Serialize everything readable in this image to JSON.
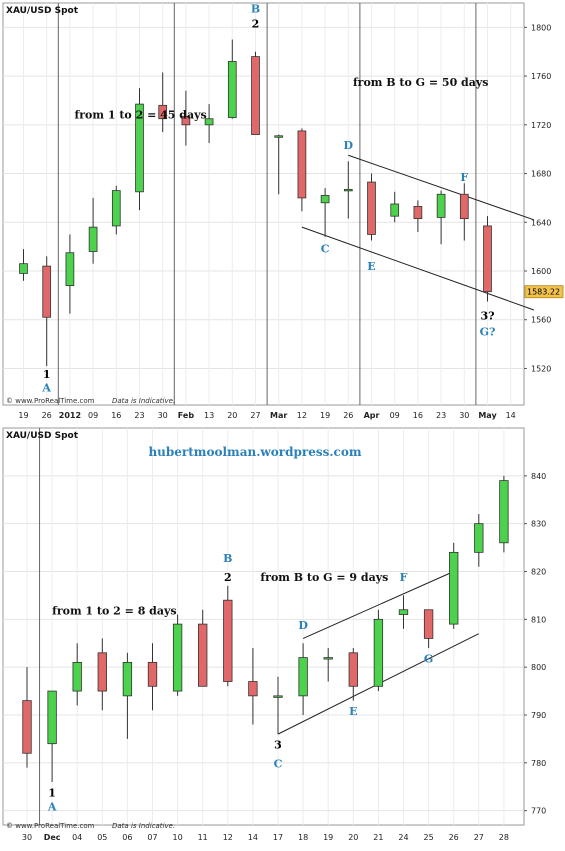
{
  "chart_data": [
    {
      "type": "candlestick",
      "title": "XAU/USD Spot",
      "watermark": "© www.ProRealTime.com",
      "disclaimer": "Data is Indicative.",
      "ylim": [
        1490,
        1820
      ],
      "y_ticks": [
        1520,
        1560,
        1600,
        1640,
        1680,
        1720,
        1760,
        1800
      ],
      "y_tick_labels": [
        "1520",
        "1560",
        "1600",
        "1640",
        "1680",
        "1720",
        "1760",
        "1800"
      ],
      "x_tick_labels": [
        "19",
        "26",
        "2012",
        "09",
        "16",
        "23",
        "30",
        "Feb",
        "13",
        "20",
        "27",
        "Mar",
        "12",
        "19",
        "26",
        "Apr",
        "09",
        "16",
        "23",
        "30",
        "May",
        "14"
      ],
      "current_price_label": "1583.22",
      "candles": [
        {
          "x": 1,
          "o": 1598,
          "h": 1618,
          "l": 1592,
          "c": 1606
        },
        {
          "x": 2,
          "o": 1604,
          "h": 1612,
          "l": 1522,
          "c": 1562
        },
        {
          "x": 3,
          "o": 1588,
          "h": 1630,
          "l": 1565,
          "c": 1615
        },
        {
          "x": 4,
          "o": 1616,
          "h": 1660,
          "l": 1606,
          "c": 1636
        },
        {
          "x": 5,
          "o": 1637,
          "h": 1670,
          "l": 1630,
          "c": 1666
        },
        {
          "x": 6,
          "o": 1665,
          "h": 1750,
          "l": 1650,
          "c": 1737
        },
        {
          "x": 7,
          "o": 1736,
          "h": 1763,
          "l": 1714,
          "c": 1725
        },
        {
          "x": 8,
          "o": 1727,
          "h": 1748,
          "l": 1703,
          "c": 1720
        },
        {
          "x": 9,
          "o": 1720,
          "h": 1737,
          "l": 1705,
          "c": 1725
        },
        {
          "x": 10,
          "o": 1726,
          "h": 1790,
          "l": 1725,
          "c": 1772
        },
        {
          "x": 11,
          "o": 1776,
          "h": 1780,
          "l": 1712,
          "c": 1712
        },
        {
          "x": 12,
          "o": 1711,
          "h": 1712,
          "l": 1663,
          "c": 1711
        },
        {
          "x": 13,
          "o": 1715,
          "h": 1717,
          "l": 1649,
          "c": 1660
        },
        {
          "x": 14,
          "o": 1656,
          "h": 1668,
          "l": 1628,
          "c": 1662
        },
        {
          "x": 15,
          "o": 1667,
          "h": 1690,
          "l": 1643,
          "c": 1667
        },
        {
          "x": 16,
          "o": 1673,
          "h": 1680,
          "l": 1625,
          "c": 1630
        },
        {
          "x": 17,
          "o": 1645,
          "h": 1665,
          "l": 1640,
          "c": 1655
        },
        {
          "x": 18,
          "o": 1653,
          "h": 1658,
          "l": 1632,
          "c": 1643
        },
        {
          "x": 19,
          "o": 1644,
          "h": 1666,
          "l": 1622,
          "c": 1663
        },
        {
          "x": 20,
          "o": 1663,
          "h": 1672,
          "l": 1625,
          "c": 1643
        },
        {
          "x": 21,
          "o": 1637,
          "h": 1645,
          "l": 1575,
          "c": 1583
        }
      ],
      "channel_lines": [
        {
          "x1": 13,
          "y1": 1636,
          "x2": 23,
          "y2": 1568
        },
        {
          "x1": 15,
          "y1": 1695,
          "x2": 23,
          "y2": 1642
        }
      ],
      "vertical_dividers": [
        2.5,
        7.5,
        11.5,
        15.5,
        20.5
      ],
      "wave_labels": [
        {
          "x": 2,
          "y": 1512,
          "text": "1",
          "color": "#000000"
        },
        {
          "x": 2,
          "y": 1501,
          "text": "A",
          "color": "#2a80b9"
        },
        {
          "x": 11,
          "y": 1812,
          "text": "B",
          "color": "#2a80b9"
        },
        {
          "x": 11,
          "y": 1800,
          "text": "2",
          "color": "#000000"
        },
        {
          "x": 14,
          "y": 1615,
          "text": "C",
          "color": "#2a80b9"
        },
        {
          "x": 15,
          "y": 1700,
          "text": "D",
          "color": "#2a80b9"
        },
        {
          "x": 16,
          "y": 1601,
          "text": "E",
          "color": "#2a80b9"
        },
        {
          "x": 20,
          "y": 1674,
          "text": "F",
          "color": "#2a80b9"
        },
        {
          "x": 21,
          "y": 1560,
          "text": "3?",
          "color": "#000000"
        },
        {
          "x": 21,
          "y": 1547,
          "text": "G?",
          "color": "#2a80b9"
        }
      ],
      "annotations": [
        {
          "x": 3.2,
          "y": 1725,
          "text": "from 1 to 2 = 45 days"
        },
        {
          "x": 15.2,
          "y": 1752,
          "text": "from B to G = 50 days"
        }
      ]
    },
    {
      "type": "candlestick",
      "title": "XAU/USD Spot",
      "watermark": "© www.ProRealTime.com",
      "disclaimer": "Data is Indicative.",
      "site_label": "hubertmoolman.wordpress.com",
      "ylim": [
        767,
        850
      ],
      "y_ticks": [
        770,
        780,
        790,
        800,
        810,
        820,
        830,
        840
      ],
      "y_tick_labels": [
        "770",
        "780",
        "790",
        "800",
        "810",
        "820",
        "830",
        "840"
      ],
      "x_tick_labels": [
        "30",
        "Dec",
        "04",
        "05",
        "06",
        "07",
        "10",
        "11",
        "12",
        "14",
        "17",
        "18",
        "19",
        "20",
        "21",
        "24",
        "25",
        "26",
        "27",
        "28"
      ],
      "candles": [
        {
          "x": 1,
          "o": 793,
          "h": 800,
          "l": 779,
          "c": 782
        },
        {
          "x": 2,
          "o": 784,
          "h": 795,
          "l": 776,
          "c": 795
        },
        {
          "x": 3,
          "o": 795,
          "h": 805,
          "l": 792,
          "c": 801
        },
        {
          "x": 4,
          "o": 803,
          "h": 806,
          "l": 791,
          "c": 795
        },
        {
          "x": 5,
          "o": 794,
          "h": 803,
          "l": 785,
          "c": 801
        },
        {
          "x": 6,
          "o": 801,
          "h": 805,
          "l": 791,
          "c": 796
        },
        {
          "x": 7,
          "o": 795,
          "h": 811,
          "l": 794,
          "c": 809
        },
        {
          "x": 8,
          "o": 809,
          "h": 812,
          "l": 796,
          "c": 796
        },
        {
          "x": 9,
          "o": 814,
          "h": 817,
          "l": 796,
          "c": 797
        },
        {
          "x": 10,
          "o": 797,
          "h": 804,
          "l": 788,
          "c": 794
        },
        {
          "x": 11,
          "o": 794,
          "h": 798,
          "l": 786,
          "c": 794
        },
        {
          "x": 12,
          "o": 794,
          "h": 805,
          "l": 790,
          "c": 802
        },
        {
          "x": 13,
          "o": 802,
          "h": 804,
          "l": 797,
          "c": 802
        },
        {
          "x": 14,
          "o": 803,
          "h": 804,
          "l": 793,
          "c": 796
        },
        {
          "x": 15,
          "o": 796,
          "h": 812,
          "l": 795,
          "c": 810
        },
        {
          "x": 16,
          "o": 811,
          "h": 815,
          "l": 808,
          "c": 812
        },
        {
          "x": 17,
          "o": 812,
          "h": 812,
          "l": 804,
          "c": 806
        },
        {
          "x": 18,
          "o": 809,
          "h": 826,
          "l": 808,
          "c": 824
        },
        {
          "x": 19,
          "o": 824,
          "h": 832,
          "l": 821,
          "c": 830
        },
        {
          "x": 20,
          "o": 826,
          "h": 840,
          "l": 824,
          "c": 839
        }
      ],
      "channel_lines": [
        {
          "x1": 11,
          "y1": 786,
          "x2": 19,
          "y2": 807
        },
        {
          "x1": 12,
          "y1": 806,
          "x2": 18,
          "y2": 820
        }
      ],
      "vertical_dividers": [
        1.5
      ],
      "wave_labels": [
        {
          "x": 2,
          "y": 773,
          "text": "1",
          "color": "#000000"
        },
        {
          "x": 2,
          "y": 770,
          "text": "A",
          "color": "#2a80b9"
        },
        {
          "x": 9,
          "y": 822,
          "text": "B",
          "color": "#2a80b9"
        },
        {
          "x": 9,
          "y": 818,
          "text": "2",
          "color": "#000000"
        },
        {
          "x": 11,
          "y": 783,
          "text": "3",
          "color": "#000000"
        },
        {
          "x": 11,
          "y": 779,
          "text": "C",
          "color": "#2a80b9"
        },
        {
          "x": 12,
          "y": 808,
          "text": "D",
          "color": "#2a80b9"
        },
        {
          "x": 14,
          "y": 790,
          "text": "E",
          "color": "#2a80b9"
        },
        {
          "x": 16,
          "y": 818,
          "text": "F",
          "color": "#2a80b9"
        },
        {
          "x": 17,
          "y": 801,
          "text": "G",
          "color": "#2a80b9"
        }
      ],
      "annotations": [
        {
          "x": 2.0,
          "y": 811,
          "text": "from 1 to 2 = 8 days"
        },
        {
          "x": 10.3,
          "y": 818,
          "text": "from B to G = 9 days"
        }
      ]
    }
  ]
}
